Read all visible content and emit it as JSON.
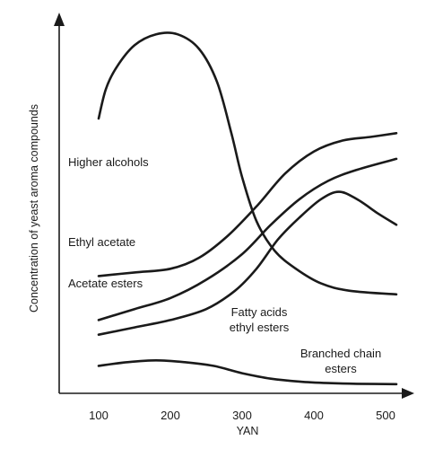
{
  "chart_data": {
    "type": "line",
    "xlabel": "YAN",
    "ylabel": "Concentration of yeast aroma compounds",
    "xticks": [
      100,
      200,
      300,
      400,
      500
    ],
    "xlim": [
      45,
      525
    ],
    "ylim": [
      0,
      100
    ],
    "grid": false,
    "series": [
      {
        "name": "Higher alcohols",
        "label_lines": [
          "Higher alcohols"
        ],
        "x": [
          100,
          110,
          125,
          150,
          180,
          210,
          240,
          265,
          285,
          300,
          320,
          345,
          375,
          410,
          450,
          515
        ],
        "y": [
          75,
          83,
          89,
          95,
          98,
          98,
          94,
          85,
          71,
          59,
          47,
          39,
          34,
          30,
          28,
          27
        ]
      },
      {
        "name": "Ethyl acetate",
        "label_lines": [
          "Ethyl acetate"
        ],
        "x": [
          100,
          150,
          200,
          240,
          280,
          320,
          360,
          400,
          440,
          480,
          515
        ],
        "y": [
          32,
          33,
          34,
          37,
          43,
          51,
          60,
          66,
          69,
          70,
          71
        ]
      },
      {
        "name": "Acetate esters",
        "label_lines": [
          "Acetate esters"
        ],
        "x": [
          100,
          150,
          200,
          250,
          300,
          340,
          380,
          420,
          460,
          515
        ],
        "y": [
          20,
          23,
          26,
          31,
          38,
          46,
          53,
          58,
          61,
          64
        ]
      },
      {
        "name": "Fatty acids ethyl esters",
        "label_lines": [
          "Fatty acids",
          "ethyl esters"
        ],
        "x": [
          100,
          150,
          200,
          250,
          290,
          320,
          350,
          380,
          410,
          435,
          460,
          490,
          515
        ],
        "y": [
          16,
          18,
          20,
          23,
          28,
          34,
          42,
          48,
          53,
          55,
          53,
          49,
          46
        ]
      },
      {
        "name": "Branched chain esters",
        "label_lines": [
          "Branched chain",
          "esters"
        ],
        "x": [
          100,
          140,
          180,
          220,
          260,
          300,
          340,
          380,
          420,
          460,
          515
        ],
        "y": [
          7.5,
          8.5,
          9,
          8.5,
          7.5,
          5.5,
          4,
          3.2,
          2.8,
          2.6,
          2.5
        ]
      }
    ]
  }
}
